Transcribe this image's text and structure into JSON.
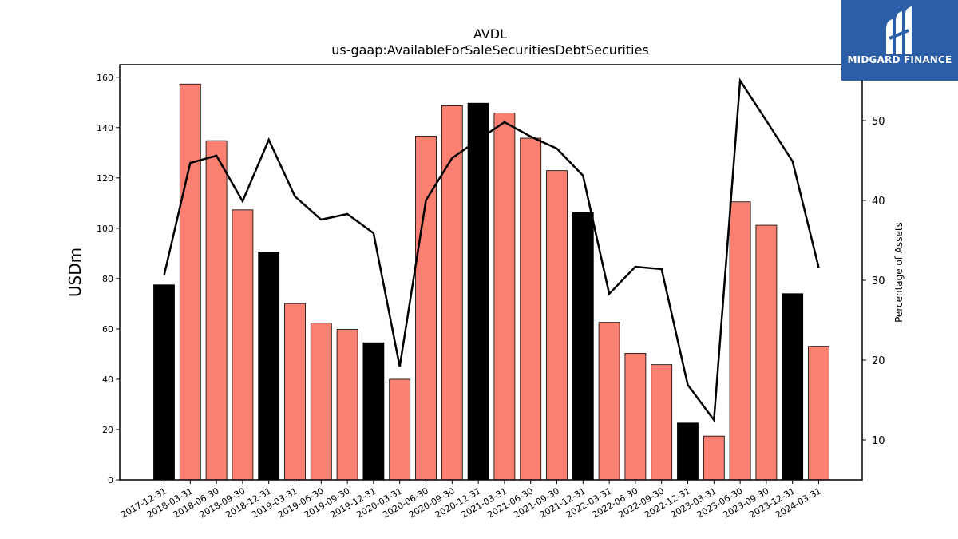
{
  "chart_data": {
    "type": "bar",
    "title": "AVDL",
    "subtitle": "us-gaap:AvailableForSaleSecuritiesDebtSecurities",
    "ylabel": "USDm",
    "ylabel_right": "Percentage of Assets",
    "ylim": [
      0,
      165
    ],
    "ylim_right": [
      5,
      57
    ],
    "yticks": [
      0,
      20,
      40,
      60,
      80,
      100,
      120,
      140,
      160
    ],
    "yticks_right": [
      10,
      20,
      30,
      40,
      50
    ],
    "categories": [
      "2017-12-31",
      "2018-03-31",
      "2018-06-30",
      "2018-09-30",
      "2018-12-31",
      "2019-03-31",
      "2019-06-30",
      "2019-09-30",
      "2019-12-31",
      "2020-03-31",
      "2020-06-30",
      "2020-09-30",
      "2020-12-31",
      "2021-03-31",
      "2021-06-30",
      "2021-09-30",
      "2021-12-31",
      "2022-03-31",
      "2022-06-30",
      "2022-09-30",
      "2022-12-31",
      "2023-03-31",
      "2023-06-30",
      "2023-09-30",
      "2023-12-31",
      "2024-03-31"
    ],
    "series": [
      {
        "type": "bar",
        "values": [
          77.5,
          157.3,
          134.8,
          107.3,
          90.6,
          70.1,
          62.3,
          59.8,
          54.5,
          40.0,
          136.6,
          148.7,
          149.7,
          145.8,
          135.8,
          122.9,
          106.3,
          62.6,
          50.3,
          45.8,
          22.6,
          17.4,
          110.5,
          101.2,
          74.0,
          53.1
        ],
        "colors": [
          "#000000",
          "#fa8072",
          "#fa8072",
          "#fa8072",
          "#000000",
          "#fa8072",
          "#fa8072",
          "#fa8072",
          "#000000",
          "#fa8072",
          "#fa8072",
          "#fa8072",
          "#000000",
          "#fa8072",
          "#fa8072",
          "#fa8072",
          "#000000",
          "#fa8072",
          "#fa8072",
          "#fa8072",
          "#000000",
          "#fa8072",
          "#fa8072",
          "#fa8072",
          "#000000",
          "#fa8072"
        ]
      },
      {
        "type": "line",
        "axis": "right",
        "color": "#000000",
        "values": [
          30.6,
          44.7,
          45.6,
          39.9,
          47.6,
          40.5,
          37.6,
          38.3,
          35.9,
          19.2,
          40.0,
          45.3,
          47.6,
          49.8,
          48.0,
          46.5,
          43.1,
          28.3,
          31.7,
          31.4,
          16.9,
          12.5,
          55.0,
          50.0,
          44.9,
          31.6
        ]
      }
    ],
    "grid": false,
    "legend": "none"
  },
  "logo": {
    "text": "MIDGARD FINANCE",
    "color": "#2c5ea8"
  }
}
